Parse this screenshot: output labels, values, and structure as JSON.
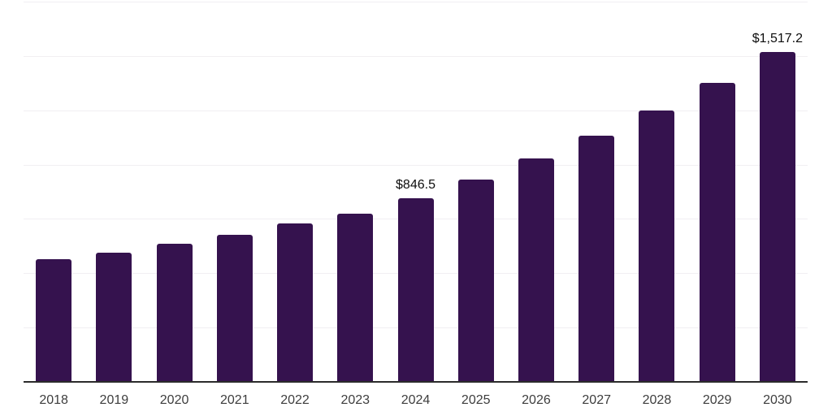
{
  "chart_data": {
    "type": "bar",
    "title": "",
    "xlabel": "",
    "ylabel": "",
    "categories": [
      "2018",
      "2019",
      "2020",
      "2021",
      "2022",
      "2023",
      "2024",
      "2025",
      "2026",
      "2027",
      "2028",
      "2029",
      "2030"
    ],
    "values": [
      563,
      596,
      635,
      678,
      728,
      773,
      846.5,
      933,
      1028,
      1133,
      1249,
      1377,
      1517.2
    ],
    "value_labels": [
      "",
      "",
      "",
      "",
      "",
      "",
      "$846.5",
      "",
      "",
      "",
      "",
      "",
      "$1,517.2"
    ],
    "ylim": [
      0,
      1750
    ],
    "ytick_interval": 250,
    "y_tick_labels_shown": false,
    "grid": true,
    "legend": false,
    "colors": {
      "bar": "#35124E",
      "gridline": "#f1eff2",
      "axis": "#2b2b2b",
      "tick_label": "#3d3d3d",
      "data_label": "#0d0d0d",
      "background": "#ffffff"
    }
  }
}
